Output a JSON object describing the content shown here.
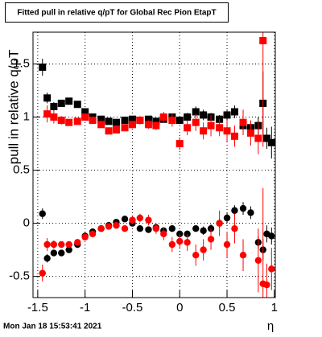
{
  "chart_data": {
    "type": "scatter",
    "title": "Fitted pull in relative q/pT for Global Rec Pion EtapT",
    "y_label": "pull in relative q/pT",
    "x_label": "η",
    "timestamp": "Mon Jan 18 15:53:41 2021",
    "x": [
      -1.45,
      -1.4,
      -1.33,
      -1.25,
      -1.17,
      -1.08,
      -1.0,
      -0.92,
      -0.83,
      -0.75,
      -0.67,
      -0.58,
      -0.5,
      -0.42,
      -0.33,
      -0.25,
      -0.17,
      -0.08,
      0,
      0.08,
      0.17,
      0.25,
      0.33,
      0.42,
      0.5,
      0.58,
      0.67,
      0.75,
      0.83,
      0.88,
      0.92,
      0.97
    ],
    "series": [
      {
        "color": "#000000",
        "marker": "square",
        "values": [
          1.47,
          1.18,
          1.1,
          1.13,
          1.15,
          1.12,
          1.05,
          1.0,
          0.98,
          0.96,
          0.95,
          0.97,
          0.98,
          0.97,
          0.98,
          0.96,
          0.98,
          1.0,
          0.97,
          1.0,
          1.05,
          1.02,
          1.0,
          0.98,
          1.02,
          1.05,
          0.92,
          0.9,
          0.92,
          1.13,
          0.8,
          0.76
        ],
        "errors": [
          0.08,
          0.05,
          0.04,
          0.03,
          0.03,
          0.03,
          0.03,
          0.03,
          0.02,
          0.02,
          0.02,
          0.02,
          0.02,
          0.02,
          0.02,
          0.02,
          0.03,
          0.03,
          0.03,
          0.04,
          0.05,
          0.05,
          0.04,
          0.04,
          0.05,
          0.06,
          0.06,
          0.06,
          0.08,
          0.3,
          0.1,
          0.15
        ]
      },
      {
        "color": "#ff0000",
        "marker": "square",
        "values": [
          null,
          1.03,
          1.0,
          0.97,
          0.95,
          0.96,
          1.0,
          0.97,
          0.93,
          0.87,
          0.88,
          0.9,
          0.93,
          0.97,
          0.93,
          0.92,
          1.0,
          0.97,
          0.75,
          0.9,
          0.95,
          0.87,
          0.92,
          0.9,
          0.87,
          0.82,
          0.95,
          0.85,
          0.8,
          1.72,
          null,
          null
        ],
        "errors": [
          null,
          0.08,
          0.06,
          0.04,
          0.03,
          0.03,
          0.03,
          0.03,
          0.03,
          0.03,
          0.03,
          0.03,
          0.03,
          0.04,
          0.04,
          0.04,
          0.05,
          0.06,
          0.06,
          0.07,
          0.08,
          0.08,
          0.1,
          0.08,
          0.1,
          0.1,
          0.12,
          0.12,
          0.15,
          1.0,
          null,
          null
        ]
      },
      {
        "color": "#000000",
        "marker": "circle",
        "values": [
          0.09,
          -0.33,
          -0.28,
          -0.28,
          -0.25,
          -0.2,
          -0.12,
          -0.08,
          -0.05,
          -0.02,
          0.01,
          0.04,
          0.0,
          -0.05,
          -0.06,
          -0.04,
          -0.07,
          -0.05,
          -0.1,
          -0.1,
          -0.05,
          -0.07,
          -0.05,
          0.0,
          0.05,
          0.12,
          0.14,
          0.1,
          -0.18,
          -0.25,
          -0.1,
          -0.12
        ],
        "errors": [
          0.05,
          0.04,
          0.03,
          0.03,
          0.02,
          0.02,
          0.02,
          0.02,
          0.02,
          0.02,
          0.02,
          0.02,
          0.02,
          0.02,
          0.02,
          0.02,
          0.02,
          0.03,
          0.03,
          0.03,
          0.03,
          0.04,
          0.04,
          0.04,
          0.05,
          0.05,
          0.06,
          0.06,
          0.06,
          0.1,
          0.08,
          0.08
        ]
      },
      {
        "color": "#ff0000",
        "marker": "circle",
        "values": [
          -0.47,
          -0.2,
          -0.2,
          -0.2,
          -0.2,
          -0.18,
          -0.13,
          -0.1,
          -0.05,
          -0.03,
          -0.02,
          -0.05,
          0.03,
          0.05,
          0.03,
          -0.05,
          -0.1,
          -0.2,
          -0.17,
          -0.18,
          -0.3,
          -0.25,
          -0.15,
          0.0,
          -0.2,
          -0.05,
          -0.3,
          null,
          -0.35,
          -0.57,
          -0.58,
          -0.43
        ],
        "errors": [
          0.08,
          0.06,
          0.04,
          0.03,
          0.03,
          0.03,
          0.03,
          0.03,
          0.03,
          0.03,
          0.03,
          0.03,
          0.04,
          0.04,
          0.05,
          0.05,
          0.06,
          0.07,
          0.07,
          0.08,
          0.1,
          0.1,
          0.1,
          0.12,
          0.12,
          0.14,
          0.15,
          null,
          0.3,
          0.9,
          0.2,
          0.2
        ]
      }
    ],
    "xlim": [
      -1.55,
      1.01
    ],
    "ylim": [
      -0.7,
      1.8
    ],
    "xticks": [
      -1.5,
      -1,
      -0.5,
      0,
      0.5,
      1
    ],
    "yticks": [
      -0.5,
      0,
      0.5,
      1,
      1.5
    ],
    "grid": true
  }
}
